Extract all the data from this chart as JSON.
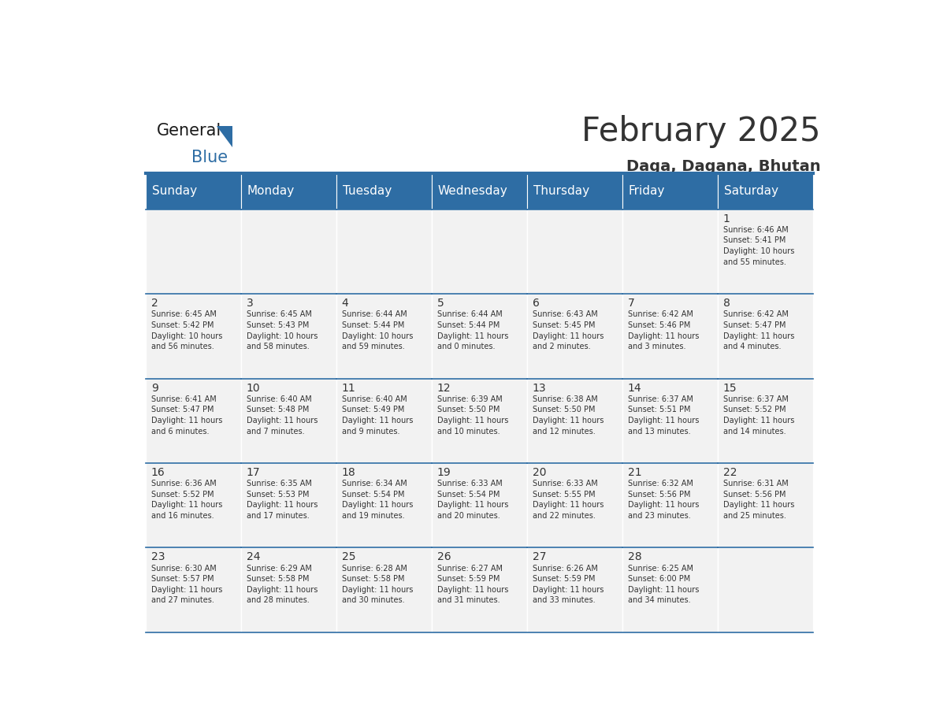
{
  "title": "February 2025",
  "subtitle": "Daga, Dagana, Bhutan",
  "header_bg": "#2E6DA4",
  "header_text_color": "#FFFFFF",
  "cell_bg_light": "#F2F2F2",
  "text_color": "#333333",
  "line_color": "#2E6DA4",
  "days_of_week": [
    "Sunday",
    "Monday",
    "Tuesday",
    "Wednesday",
    "Thursday",
    "Friday",
    "Saturday"
  ],
  "weeks": [
    [
      {
        "day": null,
        "info": null
      },
      {
        "day": null,
        "info": null
      },
      {
        "day": null,
        "info": null
      },
      {
        "day": null,
        "info": null
      },
      {
        "day": null,
        "info": null
      },
      {
        "day": null,
        "info": null
      },
      {
        "day": 1,
        "info": "Sunrise: 6:46 AM\nSunset: 5:41 PM\nDaylight: 10 hours\nand 55 minutes."
      }
    ],
    [
      {
        "day": 2,
        "info": "Sunrise: 6:45 AM\nSunset: 5:42 PM\nDaylight: 10 hours\nand 56 minutes."
      },
      {
        "day": 3,
        "info": "Sunrise: 6:45 AM\nSunset: 5:43 PM\nDaylight: 10 hours\nand 58 minutes."
      },
      {
        "day": 4,
        "info": "Sunrise: 6:44 AM\nSunset: 5:44 PM\nDaylight: 10 hours\nand 59 minutes."
      },
      {
        "day": 5,
        "info": "Sunrise: 6:44 AM\nSunset: 5:44 PM\nDaylight: 11 hours\nand 0 minutes."
      },
      {
        "day": 6,
        "info": "Sunrise: 6:43 AM\nSunset: 5:45 PM\nDaylight: 11 hours\nand 2 minutes."
      },
      {
        "day": 7,
        "info": "Sunrise: 6:42 AM\nSunset: 5:46 PM\nDaylight: 11 hours\nand 3 minutes."
      },
      {
        "day": 8,
        "info": "Sunrise: 6:42 AM\nSunset: 5:47 PM\nDaylight: 11 hours\nand 4 minutes."
      }
    ],
    [
      {
        "day": 9,
        "info": "Sunrise: 6:41 AM\nSunset: 5:47 PM\nDaylight: 11 hours\nand 6 minutes."
      },
      {
        "day": 10,
        "info": "Sunrise: 6:40 AM\nSunset: 5:48 PM\nDaylight: 11 hours\nand 7 minutes."
      },
      {
        "day": 11,
        "info": "Sunrise: 6:40 AM\nSunset: 5:49 PM\nDaylight: 11 hours\nand 9 minutes."
      },
      {
        "day": 12,
        "info": "Sunrise: 6:39 AM\nSunset: 5:50 PM\nDaylight: 11 hours\nand 10 minutes."
      },
      {
        "day": 13,
        "info": "Sunrise: 6:38 AM\nSunset: 5:50 PM\nDaylight: 11 hours\nand 12 minutes."
      },
      {
        "day": 14,
        "info": "Sunrise: 6:37 AM\nSunset: 5:51 PM\nDaylight: 11 hours\nand 13 minutes."
      },
      {
        "day": 15,
        "info": "Sunrise: 6:37 AM\nSunset: 5:52 PM\nDaylight: 11 hours\nand 14 minutes."
      }
    ],
    [
      {
        "day": 16,
        "info": "Sunrise: 6:36 AM\nSunset: 5:52 PM\nDaylight: 11 hours\nand 16 minutes."
      },
      {
        "day": 17,
        "info": "Sunrise: 6:35 AM\nSunset: 5:53 PM\nDaylight: 11 hours\nand 17 minutes."
      },
      {
        "day": 18,
        "info": "Sunrise: 6:34 AM\nSunset: 5:54 PM\nDaylight: 11 hours\nand 19 minutes."
      },
      {
        "day": 19,
        "info": "Sunrise: 6:33 AM\nSunset: 5:54 PM\nDaylight: 11 hours\nand 20 minutes."
      },
      {
        "day": 20,
        "info": "Sunrise: 6:33 AM\nSunset: 5:55 PM\nDaylight: 11 hours\nand 22 minutes."
      },
      {
        "day": 21,
        "info": "Sunrise: 6:32 AM\nSunset: 5:56 PM\nDaylight: 11 hours\nand 23 minutes."
      },
      {
        "day": 22,
        "info": "Sunrise: 6:31 AM\nSunset: 5:56 PM\nDaylight: 11 hours\nand 25 minutes."
      }
    ],
    [
      {
        "day": 23,
        "info": "Sunrise: 6:30 AM\nSunset: 5:57 PM\nDaylight: 11 hours\nand 27 minutes."
      },
      {
        "day": 24,
        "info": "Sunrise: 6:29 AM\nSunset: 5:58 PM\nDaylight: 11 hours\nand 28 minutes."
      },
      {
        "day": 25,
        "info": "Sunrise: 6:28 AM\nSunset: 5:58 PM\nDaylight: 11 hours\nand 30 minutes."
      },
      {
        "day": 26,
        "info": "Sunrise: 6:27 AM\nSunset: 5:59 PM\nDaylight: 11 hours\nand 31 minutes."
      },
      {
        "day": 27,
        "info": "Sunrise: 6:26 AM\nSunset: 5:59 PM\nDaylight: 11 hours\nand 33 minutes."
      },
      {
        "day": 28,
        "info": "Sunrise: 6:25 AM\nSunset: 6:00 PM\nDaylight: 11 hours\nand 34 minutes."
      },
      {
        "day": null,
        "info": null
      }
    ]
  ],
  "logo_text1": "General",
  "logo_text2": "Blue",
  "logo_color1": "#1a1a1a",
  "logo_color2": "#2E6DA4",
  "logo_triangle_color": "#2E6DA4"
}
